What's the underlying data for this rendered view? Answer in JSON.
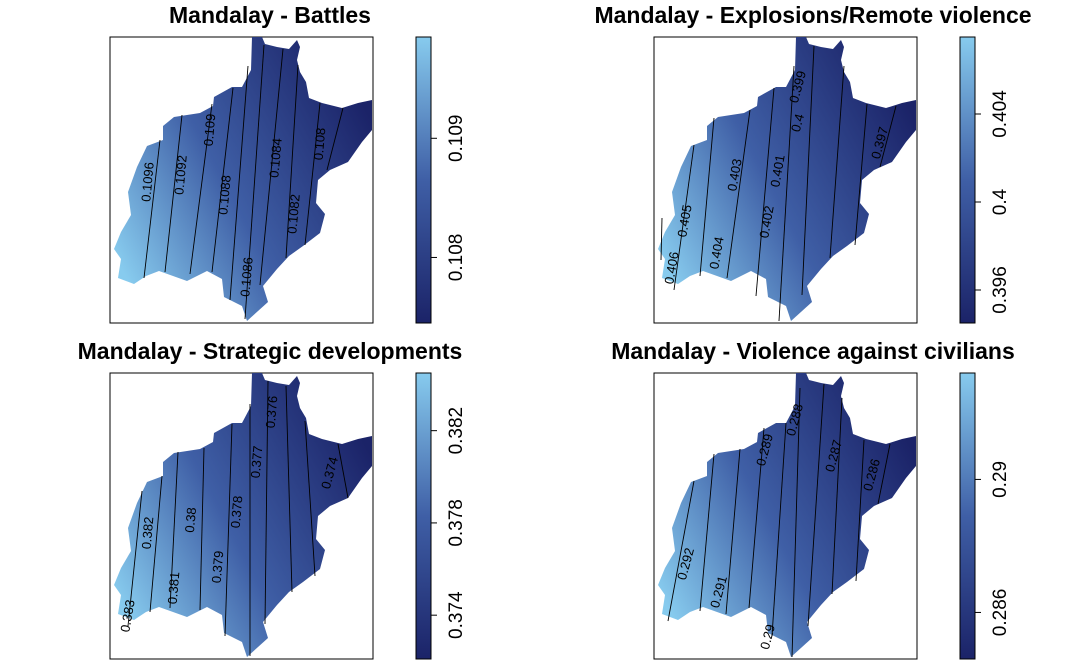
{
  "figure": {
    "colors": {
      "low": "#1b2368",
      "mid": "#3f5fa6",
      "high": "#87cbee",
      "frame": "#000000",
      "contour": "#000000"
    },
    "panels": [
      {
        "title": "Mandalay -  Battles",
        "legend": {
          "min": 0.10745,
          "max": 0.10985,
          "ticks": [
            "0.108",
            "0.109"
          ],
          "tick_values": [
            0.108,
            0.109
          ]
        },
        "contour_labels": [
          "0.1096",
          "0.1092",
          "0.109",
          "0.1088",
          "0.1086",
          "0.1084",
          "0.1082",
          "0.108"
        ]
      },
      {
        "title": "Mandalay -  Explosions/Remote violence",
        "legend": {
          "min": 0.3945,
          "max": 0.4075,
          "ticks": [
            "0.396",
            "0.4",
            "0.404"
          ],
          "tick_values": [
            0.396,
            0.4,
            0.404
          ]
        },
        "contour_labels": [
          "0.399",
          "0.4",
          "0.397",
          "0.403",
          "0.401",
          "0.402",
          "0.405",
          "0.404",
          "0.406"
        ]
      },
      {
        "title": "Mandalay -  Strategic developments",
        "legend": {
          "min": 0.3721,
          "max": 0.3845,
          "ticks": [
            "0.374",
            "0.378",
            "0.382"
          ],
          "tick_values": [
            0.374,
            0.378,
            0.382
          ]
        },
        "contour_labels": [
          "0.376",
          "0.377",
          "0.374",
          "0.378",
          "0.38",
          "0.382",
          "0.379",
          "0.381",
          "0.383"
        ]
      },
      {
        "title": "Mandalay -  Violence against civilians",
        "legend": {
          "min": 0.2846,
          "max": 0.2932,
          "ticks": [
            "0.286",
            "0.29"
          ],
          "tick_values": [
            0.286,
            0.29
          ]
        },
        "contour_labels": [
          "0.288",
          "0.289",
          "0.287",
          "0.286",
          "0.292",
          "0.291",
          "0.29"
        ]
      }
    ]
  }
}
